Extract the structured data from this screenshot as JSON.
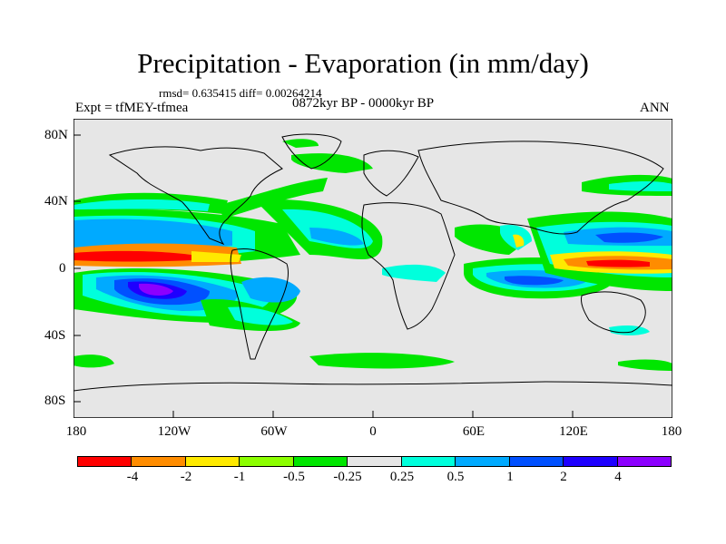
{
  "title": "Precipitation - Evaporation (in mm/day)",
  "stats": "rmsd= 0.635415  diff= 0.00264214",
  "experiment": "Expt = tfMEY-tfmea",
  "period": "0872kyr BP - 0000kyr BP",
  "season": "ANN",
  "map": {
    "background_color": "#e6e6e6",
    "y_ticks": [
      "80N",
      "40N",
      "0",
      "40S",
      "80S"
    ],
    "x_ticks": [
      "180",
      "120W",
      "60W",
      "0",
      "60E",
      "120E",
      "180"
    ]
  },
  "colorbar": {
    "colors": [
      "#ff0000",
      "#ff8c00",
      "#ffea00",
      "#8cff00",
      "#00e600",
      "#e6e6e6",
      "#00ffdc",
      "#00aaff",
      "#0050ff",
      "#1e00ff",
      "#8c00ff"
    ],
    "labels": [
      "-4",
      "-2",
      "-1",
      "-0.5",
      "-0.25",
      "0.25",
      "0.5",
      "1",
      "2",
      "4"
    ]
  }
}
